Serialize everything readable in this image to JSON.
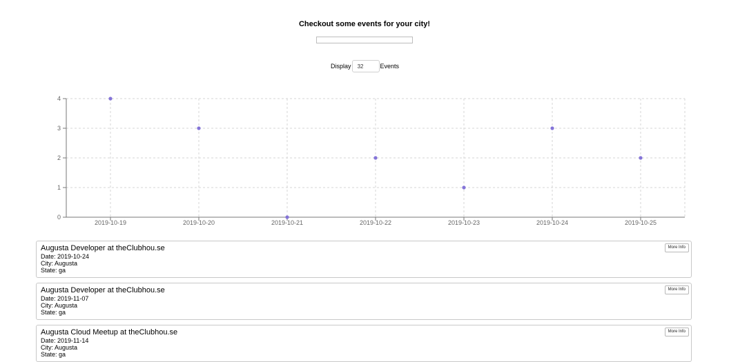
{
  "header": {
    "title": "Checkout some events for your city!"
  },
  "search": {
    "value": "",
    "placeholder": ""
  },
  "display": {
    "prefix": "Display",
    "count": "32",
    "suffix": "Events"
  },
  "chart_data": {
    "type": "scatter",
    "title": "",
    "xlabel": "",
    "ylabel": "",
    "x": [
      "2019-10-19",
      "2019-10-20",
      "2019-10-21",
      "2019-10-22",
      "2019-10-23",
      "2019-10-24",
      "2019-10-25"
    ],
    "y": [
      4,
      3,
      0,
      2,
      1,
      3,
      2
    ],
    "yticks": [
      0,
      1,
      2,
      3,
      4
    ],
    "ylim": [
      0,
      4
    ],
    "grid": true,
    "legend": "none",
    "point_color": "#8474d8"
  },
  "events": [
    {
      "title": "Augusta Developer at theClubhou.se",
      "date": "Date: 2019-10-24",
      "city": "City: Augusta",
      "state": "State: ga",
      "button": "More Info"
    },
    {
      "title": "Augusta Developer at theClubhou.se",
      "date": "Date: 2019-11-07",
      "city": "City: Augusta",
      "state": "State: ga",
      "button": "More Info"
    },
    {
      "title": "Augusta Cloud Meetup at theClubhou.se",
      "date": "Date: 2019-11-14",
      "city": "City: Augusta",
      "state": "State: ga",
      "button": "More Info"
    }
  ]
}
